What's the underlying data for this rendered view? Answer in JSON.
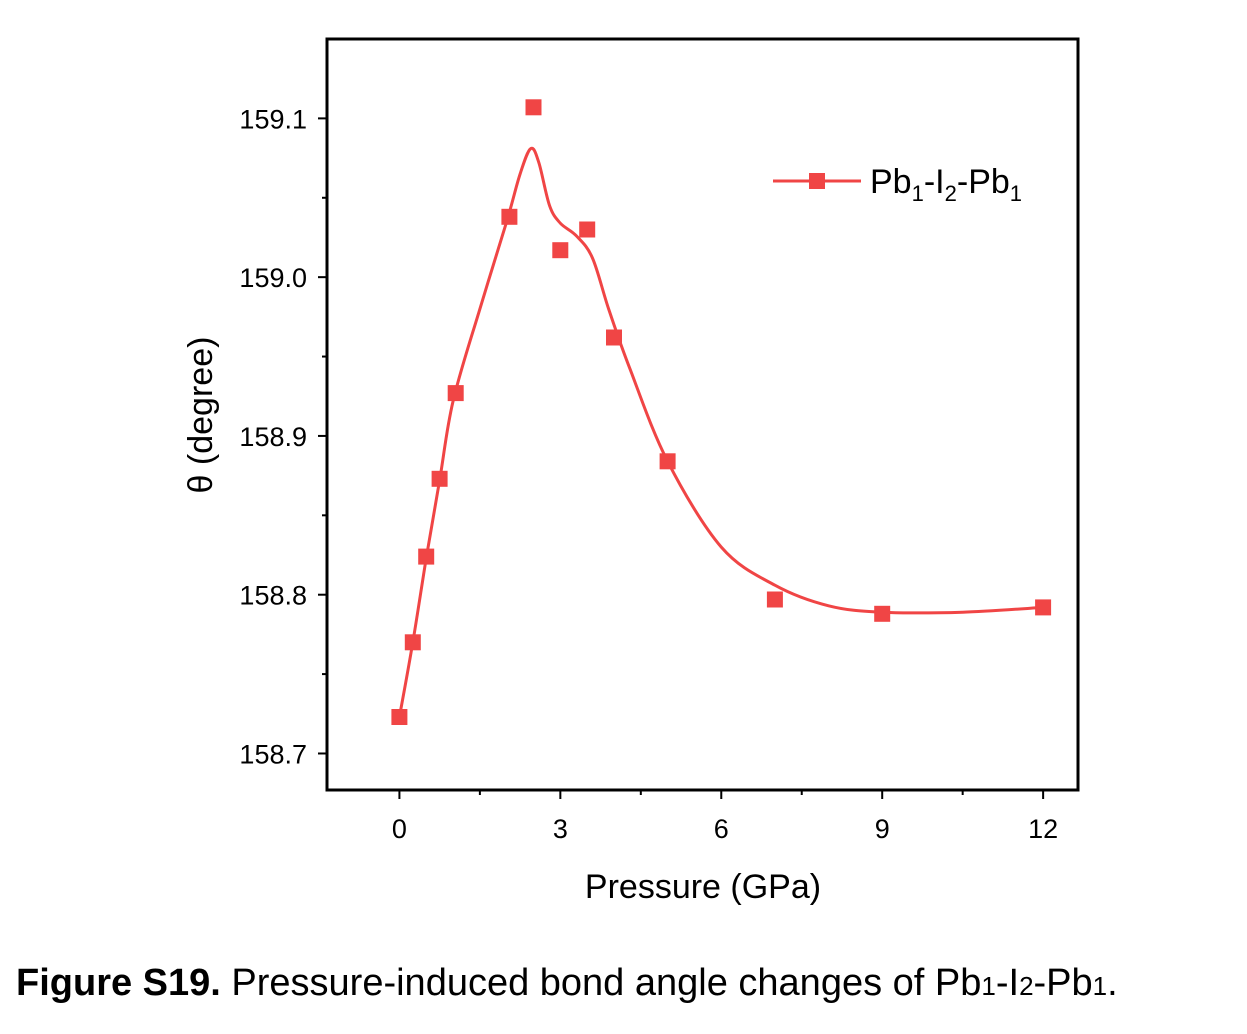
{
  "chart_data": {
    "type": "line",
    "xlabel": "Pressure (GPa)",
    "ylabel": "θ (degree)",
    "xlim": [
      -1.35,
      12.65
    ],
    "ylim": [
      158.677,
      159.15
    ],
    "xticks": [
      0,
      3,
      6,
      9,
      12
    ],
    "yticks": [
      158.7,
      158.8,
      158.9,
      159.0,
      159.1
    ],
    "legend_position": "top-right",
    "colors": {
      "series": "#f04545",
      "axis": "#000000"
    },
    "series": [
      {
        "name": "Pb1-I2-Pb1",
        "legend": {
          "base": "Pb",
          "sub1": "1",
          "mid": "-I",
          "sub2": "2",
          "mid2": "-Pb",
          "sub3": "1"
        },
        "points": [
          {
            "x": 0.0,
            "y": 158.723
          },
          {
            "x": 0.25,
            "y": 158.77
          },
          {
            "x": 0.5,
            "y": 158.824
          },
          {
            "x": 0.75,
            "y": 158.873
          },
          {
            "x": 1.05,
            "y": 158.927
          },
          {
            "x": 2.05,
            "y": 159.038
          },
          {
            "x": 2.5,
            "y": 159.107
          },
          {
            "x": 3.0,
            "y": 159.017
          },
          {
            "x": 3.5,
            "y": 159.03
          },
          {
            "x": 4.0,
            "y": 158.962
          },
          {
            "x": 5.0,
            "y": 158.884
          },
          {
            "x": 7.0,
            "y": 158.797
          },
          {
            "x": 9.0,
            "y": 158.788
          },
          {
            "x": 12.0,
            "y": 158.792
          }
        ],
        "fit_curve": [
          {
            "x": 0.0,
            "y": 158.723
          },
          {
            "x": 0.25,
            "y": 158.77
          },
          {
            "x": 0.5,
            "y": 158.823
          },
          {
            "x": 0.75,
            "y": 158.872
          },
          {
            "x": 1.0,
            "y": 158.922
          },
          {
            "x": 1.5,
            "y": 158.98
          },
          {
            "x": 2.0,
            "y": 159.035
          },
          {
            "x": 2.25,
            "y": 159.065
          },
          {
            "x": 2.45,
            "y": 159.081
          },
          {
            "x": 2.6,
            "y": 159.072
          },
          {
            "x": 2.8,
            "y": 159.045
          },
          {
            "x": 3.0,
            "y": 159.034
          },
          {
            "x": 3.3,
            "y": 159.026
          },
          {
            "x": 3.6,
            "y": 159.012
          },
          {
            "x": 3.9,
            "y": 158.98
          },
          {
            "x": 4.3,
            "y": 158.942
          },
          {
            "x": 5.0,
            "y": 158.884
          },
          {
            "x": 6.0,
            "y": 158.83
          },
          {
            "x": 7.0,
            "y": 158.806
          },
          {
            "x": 8.0,
            "y": 158.793
          },
          {
            "x": 9.0,
            "y": 158.789
          },
          {
            "x": 10.5,
            "y": 158.789
          },
          {
            "x": 12.0,
            "y": 158.792
          }
        ]
      }
    ]
  },
  "caption": {
    "label": "Figure S19.",
    "text": "Pressure-induced bond angle changes of Pb",
    "sub1": "1",
    "mid": "-I",
    "sub2": "2",
    "mid2": "-Pb",
    "sub3": "1",
    "end": "."
  }
}
